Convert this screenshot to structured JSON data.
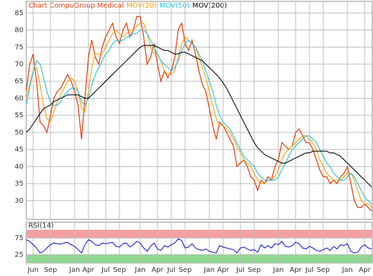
{
  "chart_data": {
    "type": "line",
    "categories": [
      null,
      null,
      "Jun",
      null,
      null,
      null,
      null,
      "Sep",
      null,
      null,
      null,
      null,
      null,
      null,
      "Jan",
      null,
      null,
      null,
      "Apr",
      null,
      null,
      null,
      null,
      "Jul",
      null,
      null,
      null,
      "Sep",
      null,
      null,
      null,
      null,
      null,
      "Jan",
      null,
      null,
      null,
      null,
      "Apr",
      null,
      null,
      null,
      "Jul",
      null,
      null,
      null,
      "Sep",
      null,
      null,
      null,
      null,
      null,
      null,
      "Jan",
      null,
      null,
      null,
      "Apr",
      null,
      null,
      null,
      null,
      "Jul",
      null,
      null,
      null,
      "Sep",
      null,
      null,
      null,
      null,
      null,
      null,
      "Jan",
      null,
      null,
      null,
      null,
      "Apr",
      null,
      null,
      null,
      "Jul",
      null,
      null,
      null,
      "Sep",
      null,
      null,
      null,
      null,
      null,
      null,
      "Jan",
      null,
      null,
      null,
      null,
      "Apr",
      null,
      null
    ],
    "series": [
      {
        "name": "Chart CompuGroup Medical",
        "color": "#e04010",
        "values": [
          62,
          70,
          73,
          65,
          53,
          52,
          50,
          55,
          60,
          62,
          63,
          65,
          67,
          65,
          62,
          58,
          48,
          60,
          72,
          77,
          72,
          70,
          75,
          78,
          80,
          82,
          78,
          76,
          80,
          82,
          78,
          80,
          84,
          84,
          78,
          70,
          72,
          76,
          70,
          65,
          68,
          66,
          68,
          72,
          80,
          82,
          76,
          74,
          77,
          73,
          68,
          64,
          62,
          57,
          52,
          48,
          53,
          52,
          50,
          48,
          46,
          40,
          41,
          42,
          40,
          37,
          36,
          33,
          36,
          35,
          37,
          36,
          40,
          42,
          47,
          46,
          45,
          46,
          50,
          51,
          49,
          47,
          47,
          45,
          42,
          39,
          37,
          37,
          35,
          36,
          35,
          37,
          38,
          40,
          35,
          30,
          28,
          28,
          29,
          28,
          27
        ]
      },
      {
        "name": "MOV(20)",
        "color": "#f0a000",
        "values": [
          60,
          64,
          68,
          69,
          64,
          58,
          54,
          53,
          56,
          59,
          61,
          63,
          65,
          66,
          65,
          62,
          57,
          56,
          62,
          69,
          73,
          73,
          73,
          75,
          77,
          79,
          80,
          79,
          78,
          79,
          80,
          80,
          81,
          82,
          82,
          79,
          75,
          73,
          73,
          71,
          68,
          67,
          67,
          68,
          72,
          76,
          78,
          77,
          76,
          75,
          72,
          69,
          66,
          62,
          58,
          54,
          52,
          52,
          51,
          50,
          48,
          46,
          44,
          42,
          41,
          40,
          38,
          36,
          35,
          35,
          36,
          36,
          37,
          39,
          42,
          44,
          45,
          46,
          47,
          48,
          49,
          49,
          48,
          47,
          45,
          42,
          40,
          38,
          37,
          36,
          36,
          36,
          37,
          38,
          38,
          36,
          33,
          30,
          29,
          29,
          28
        ]
      },
      {
        "name": "MOV(50)",
        "color": "#20c0d8",
        "values": [
          58,
          63,
          68,
          71,
          70,
          66,
          62,
          59,
          58,
          58,
          59,
          61,
          62,
          63,
          63,
          62,
          59,
          58,
          60,
          64,
          67,
          69,
          71,
          73,
          74,
          76,
          77,
          77,
          77,
          78,
          78,
          79,
          79,
          80,
          80,
          79,
          77,
          75,
          73,
          71,
          70,
          69,
          68,
          69,
          71,
          74,
          76,
          77,
          76,
          75,
          73,
          71,
          68,
          65,
          62,
          58,
          55,
          53,
          52,
          51,
          49,
          47,
          45,
          43,
          42,
          41,
          40,
          38,
          37,
          36,
          36,
          36,
          36,
          37,
          39,
          41,
          43,
          45,
          46,
          47,
          48,
          49,
          49,
          48,
          47,
          45,
          43,
          41,
          40,
          38,
          37,
          36,
          36,
          37,
          38,
          37,
          35,
          33,
          31,
          30,
          29
        ]
      },
      {
        "name": "MOV(200)",
        "color": "#000000",
        "values": [
          50,
          51,
          52.5,
          54,
          55.5,
          57,
          57.5,
          58,
          59,
          59.5,
          60,
          60.5,
          61,
          61,
          61,
          61,
          60.5,
          60,
          60,
          61,
          62,
          63,
          64,
          65,
          66,
          67,
          68,
          69,
          70,
          71,
          72,
          73,
          74,
          75,
          75.5,
          75.5,
          75.5,
          75.5,
          75,
          74.5,
          74,
          74,
          73.5,
          73,
          73,
          73.5,
          73.5,
          73,
          72.5,
          72,
          71.5,
          71,
          70,
          69,
          68,
          67,
          66,
          64.5,
          63,
          61,
          59,
          57,
          55,
          53,
          51,
          49,
          47,
          45.5,
          44.5,
          43.5,
          43,
          42.5,
          42,
          41.5,
          41,
          41,
          41.5,
          42,
          42.5,
          43,
          43.5,
          44,
          44,
          44.5,
          44.5,
          44.5,
          44.5,
          44.5,
          44,
          44,
          43.5,
          43,
          42,
          41,
          40,
          39,
          38,
          37,
          36,
          35,
          34
        ]
      }
    ],
    "ylim": [
      24.5,
      88.4
    ],
    "yticks": [
      30,
      35,
      40,
      45,
      50,
      55,
      60,
      65,
      70,
      75,
      80,
      85
    ],
    "grid": true,
    "rsi": {
      "name": "RSI(14)",
      "color": "#0000cc",
      "ylim": [
        0,
        100
      ],
      "yticks": [
        25,
        75
      ],
      "values": [
        70,
        65,
        55,
        45,
        30,
        35,
        45,
        55,
        60,
        58,
        57,
        60,
        62,
        55,
        50,
        40,
        30,
        55,
        70,
        65,
        55,
        52,
        60,
        58,
        60,
        62,
        50,
        48,
        58,
        60,
        48,
        55,
        65,
        60,
        45,
        35,
        50,
        60,
        42,
        38,
        52,
        48,
        55,
        60,
        72,
        68,
        45,
        48,
        58,
        45,
        40,
        38,
        42,
        35,
        32,
        30,
        52,
        48,
        45,
        42,
        40,
        30,
        45,
        48,
        42,
        38,
        40,
        32,
        55,
        45,
        52,
        45,
        58,
        55,
        65,
        50,
        48,
        52,
        62,
        58,
        45,
        42,
        50,
        45,
        38,
        35,
        40,
        45,
        38,
        50,
        42,
        55,
        52,
        58,
        35,
        30,
        32,
        48,
        55,
        45,
        42
      ]
    }
  }
}
